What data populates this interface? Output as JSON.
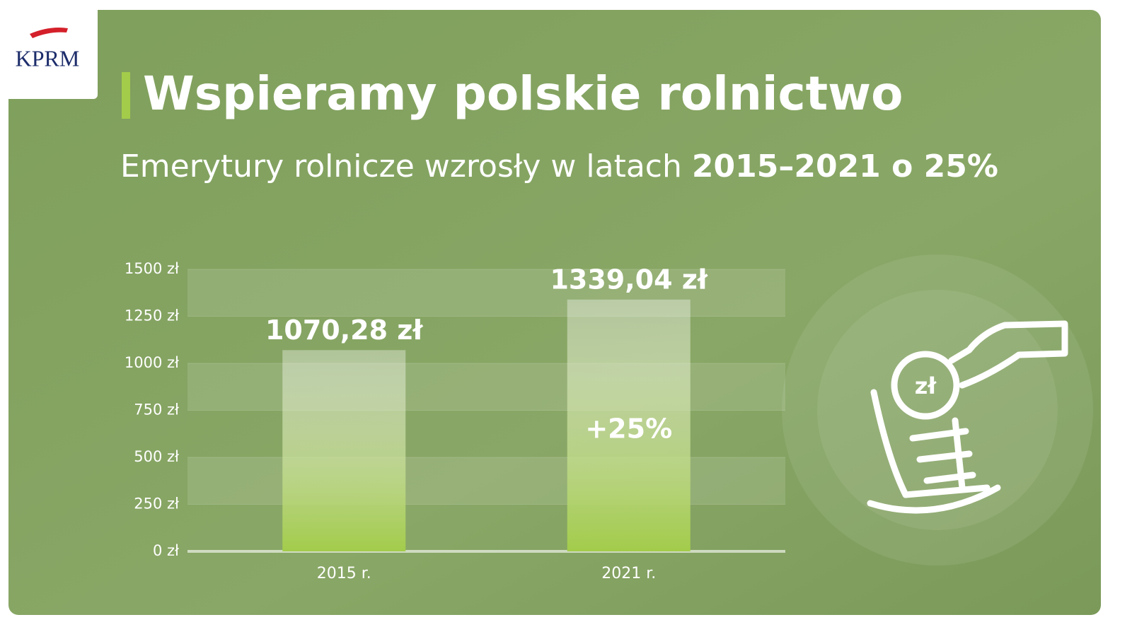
{
  "logo": "KPRM",
  "chart_data": {
    "type": "bar",
    "title": "Wspieramy polskie rolnictwo",
    "subtitle": "Emerytury rolnicze wzrosły w latach",
    "subtitle_emphasis": "2015–2021 o 25%",
    "categories": [
      "2015 r.",
      "2021 r."
    ],
    "values": [
      1070.28,
      1339.04
    ],
    "value_labels": [
      "1070,28 zł",
      "1339,04 zł"
    ],
    "annotation": "+25%",
    "icon_label": "zł",
    "color": "#a3cc4a",
    "ylim": [
      0,
      1500
    ],
    "yticks": [
      {
        "value": 0,
        "label": "0 zł"
      },
      {
        "value": 250,
        "label": "250 zł"
      },
      {
        "value": 500,
        "label": "500 zł"
      },
      {
        "value": 750,
        "label": "750 zł"
      },
      {
        "value": 1000,
        "label": "1000 zł"
      },
      {
        "value": 1250,
        "label": "1250 zł"
      },
      {
        "value": 1500,
        "label": "1500 zł"
      }
    ],
    "grid": true
  }
}
